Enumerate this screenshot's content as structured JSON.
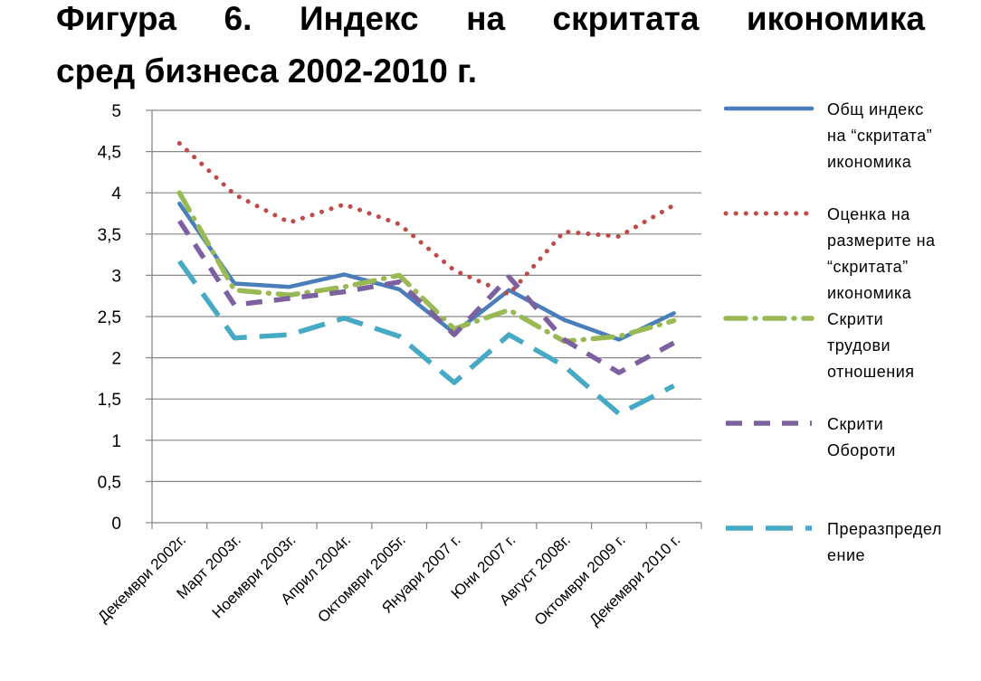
{
  "chart_data": {
    "type": "line",
    "title": "Фигура 6. Индекс на скритата икономика сред бизнеса 2002-2010 г.",
    "title_lines": [
      "Фигура 6. Индекс на скритата икономика",
      "сред бизнеса 2002-2010 г."
    ],
    "xlabel": "",
    "ylabel": "",
    "ylim": [
      0,
      5
    ],
    "yticks": [
      "0",
      "0,5",
      "1",
      "1,5",
      "2",
      "2,5",
      "3",
      "3,5",
      "4",
      "4,5",
      "5"
    ],
    "ytick_values": [
      0,
      0.5,
      1,
      1.5,
      2,
      2.5,
      3,
      3.5,
      4,
      4.5,
      5
    ],
    "categories": [
      "Декември 2002г.",
      "Март 2003г.",
      "Ноември 2003г.",
      "Април 2004г.",
      "Октомври 2005г.",
      "Януари 2007 г.",
      "Юни 2007 г.",
      "Август 2008г.",
      "Октомври 2009 г.",
      "Декември 2010 г."
    ],
    "grid": true,
    "legend_position": "right",
    "series": [
      {
        "name": "Общ индекс на “скритата” икономика",
        "legend_lines": [
          "Общ индекс",
          "на “скритата”",
          "икономика"
        ],
        "color": "#4a7ebb",
        "style": "solid",
        "values": [
          3.87,
          2.9,
          2.86,
          3.01,
          2.83,
          2.3,
          2.82,
          2.46,
          2.22,
          2.54
        ]
      },
      {
        "name": "Оценка на размерите на “скритата” икономика",
        "legend_lines": [
          "Оценка на",
          "размерите на",
          "“скритата”",
          "икономика"
        ],
        "color": "#be4b48",
        "style": "dotted",
        "values": [
          4.6,
          3.98,
          3.64,
          3.86,
          3.62,
          3.06,
          2.77,
          3.53,
          3.47,
          3.85
        ]
      },
      {
        "name": "Скрити трудови отношения",
        "legend_lines": [
          "Скрити",
          "трудови",
          "отношения"
        ],
        "color": "#98b954",
        "style": "dashdot",
        "values": [
          4.0,
          2.82,
          2.76,
          2.86,
          3.0,
          2.35,
          2.58,
          2.2,
          2.26,
          2.45
        ]
      },
      {
        "name": "Скрити Обороти",
        "legend_lines": [
          "Скрити",
          "Обороти"
        ],
        "color": "#7d60a0",
        "style": "dash",
        "values": [
          3.66,
          2.64,
          2.72,
          2.8,
          2.92,
          2.28,
          2.98,
          2.22,
          1.82,
          2.18
        ]
      },
      {
        "name": "Преразпределение",
        "legend_lines": [
          "Преразпредел",
          "ение"
        ],
        "color": "#46aac5",
        "style": "longdash",
        "values": [
          3.17,
          2.24,
          2.28,
          2.48,
          2.26,
          1.7,
          2.28,
          1.9,
          1.32,
          1.66
        ]
      }
    ]
  }
}
